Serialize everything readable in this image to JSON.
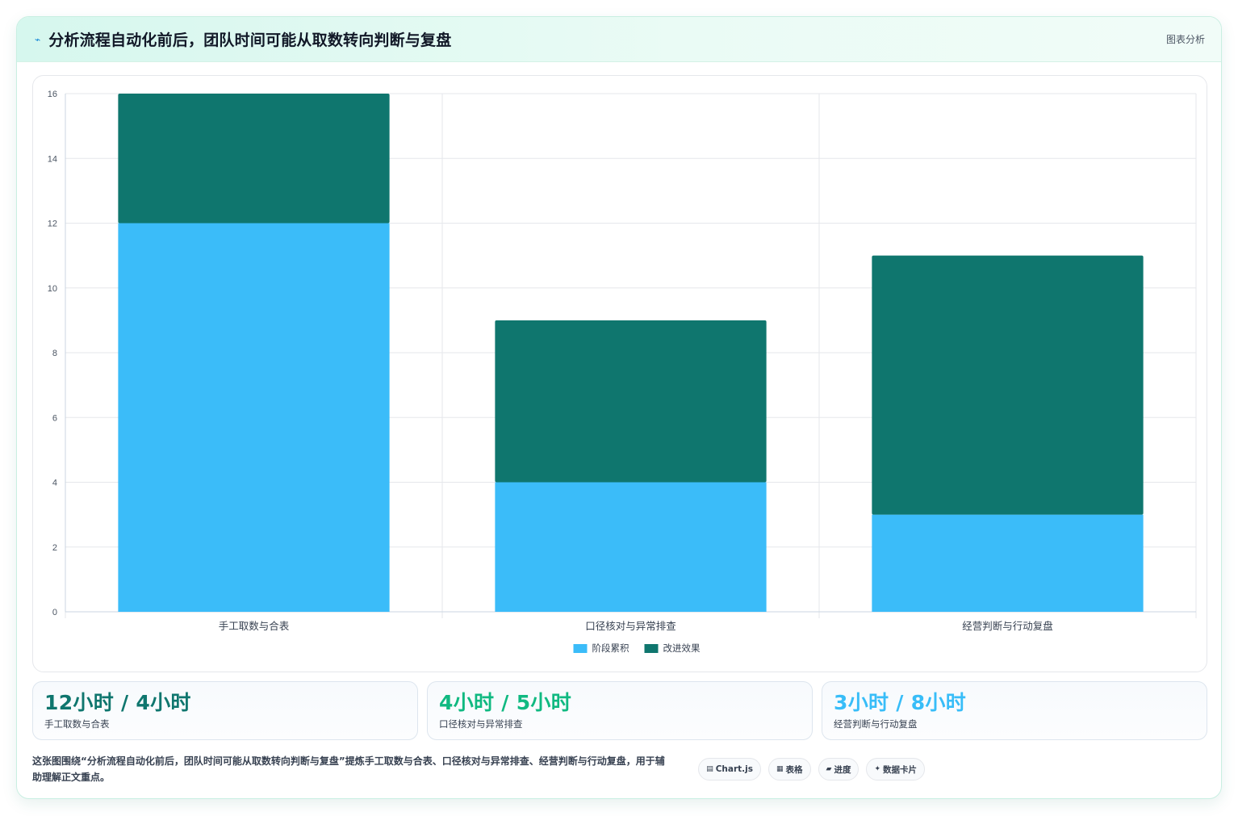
{
  "header": {
    "icon": "lightning-icon",
    "title": "分析流程自动化前后，团队时间可能从取数转向判断与复盘",
    "tag": "图表分析"
  },
  "colors": {
    "stage": "#3bbcf9",
    "improve": "#0f766e",
    "grid": "#e5e7eb",
    "tick": "#4b5563"
  },
  "chart_data": {
    "type": "bar",
    "stacked": true,
    "categories": [
      "手工取数与合表",
      "口径核对与异常排查",
      "经营判断与行动复盘"
    ],
    "series": [
      {
        "name": "阶段累积",
        "values": [
          12,
          4,
          3
        ],
        "color": "#3bbcf9"
      },
      {
        "name": "改进效果",
        "values": [
          4,
          5,
          8
        ],
        "color": "#0f766e"
      }
    ],
    "ylim": [
      0,
      16
    ],
    "yticks": [
      0,
      2,
      4,
      6,
      8,
      10,
      12,
      14,
      16
    ],
    "grid": true,
    "legend": "bottom-center"
  },
  "stats": [
    {
      "value": "12小时 / 4小时",
      "label": "手工取数与合表",
      "color": "#0f766e"
    },
    {
      "value": "4小时 / 5小时",
      "label": "口径核对与异常排查",
      "color": "#10b981"
    },
    {
      "value": "3小时 / 8小时",
      "label": "经营判断与行动复盘",
      "color": "#38bdf8"
    }
  ],
  "footer": {
    "text": "这张图围绕“分析流程自动化前后，团队时间可能从取数转向判断与复盘”提炼手工取数与合表、口径核对与异常排查、经营判断与行动复盘，用于辅助理解正文重点。",
    "pills": [
      {
        "icon": "▤",
        "label": "Chart.js"
      },
      {
        "icon": "▦",
        "label": "表格"
      },
      {
        "icon": "▰",
        "label": "进度"
      },
      {
        "icon": "✦",
        "label": "数据卡片"
      }
    ]
  }
}
